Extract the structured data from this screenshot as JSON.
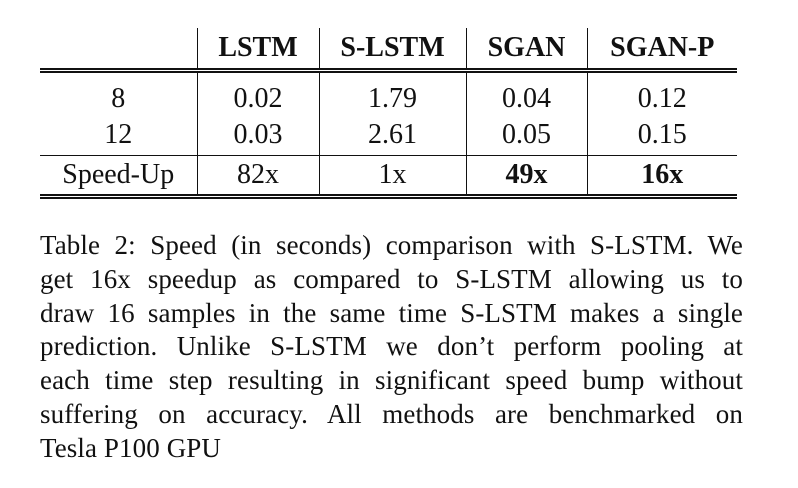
{
  "table": {
    "headers": [
      "",
      "LSTM",
      "S-LSTM",
      "SGAN",
      "SGAN-P"
    ],
    "rows": [
      {
        "label": "8",
        "values": [
          "0.02",
          "1.79",
          "0.04",
          "0.12"
        ]
      },
      {
        "label": "12",
        "values": [
          "0.03",
          "2.61",
          "0.05",
          "0.15"
        ]
      },
      {
        "label": "Speed-Up",
        "values": [
          "82x",
          "1x",
          "49x",
          "16x"
        ],
        "bold_columns": [
          "SGAN",
          "SGAN-P"
        ]
      }
    ]
  },
  "caption": {
    "lines": [
      "Table 2: Speed (in seconds) comparison with S-LSTM. We",
      "get 16x speedup as compared to S-LSTM allowing us to",
      "draw 16 samples in the same time S-LSTM makes a single",
      "prediction.  Unlike S-LSTM we don’t perform pooling at",
      "each time step resulting in significant speed bump without",
      "suffering on accuracy.  All methods are benchmarked on",
      "Tesla P100 GPU"
    ]
  }
}
